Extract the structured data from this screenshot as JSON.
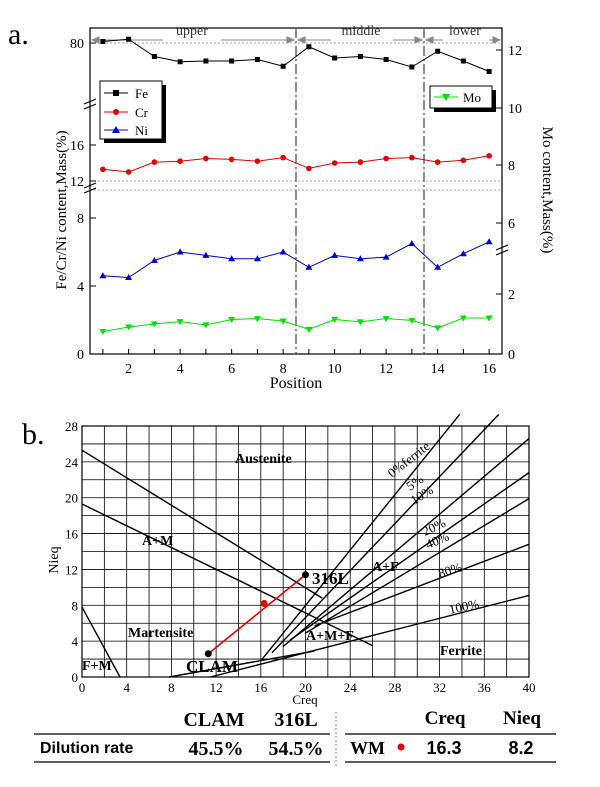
{
  "panel_a": {
    "panel_label": "a.",
    "regions": [
      "upper",
      "middle",
      "lower"
    ],
    "xlabel": "Position",
    "ylabel_left": "Fe/Cr/Ni content,Mass(%)",
    "ylabel_right": "Mo content,Mass(%)",
    "xticks": [
      "2",
      "4",
      "6",
      "8",
      "10",
      "12",
      "14",
      "16"
    ],
    "left_ticks": [
      "80",
      "16",
      "12",
      "8",
      "4",
      "0"
    ],
    "right_ticks": [
      "12",
      "10",
      "8",
      "6",
      "2",
      "0"
    ],
    "legend_left": [
      "Fe",
      "Cr",
      "Ni"
    ],
    "legend_right": [
      "Mo"
    ],
    "colors": {
      "Fe": "#000000",
      "Cr": "#e00000",
      "Ni": "#0000d0",
      "Mo": "#00e000"
    }
  },
  "panel_b": {
    "panel_label": "b.",
    "xlabel": "Creq",
    "ylabel": "Nieq",
    "xticks": [
      "0",
      "4",
      "8",
      "12",
      "16",
      "20",
      "24",
      "28",
      "32",
      "36",
      "40"
    ],
    "yticks": [
      "0",
      "4",
      "8",
      "12",
      "16",
      "20",
      "24",
      "28"
    ],
    "regions": [
      "Austenite",
      "A+M",
      "A+F",
      "Martensite",
      "A+M+F",
      "F+M",
      "Ferrite"
    ],
    "ferrite_lines": [
      "0%ferrite",
      "5%",
      "10%",
      "20%",
      "40%",
      "80%",
      "100%"
    ],
    "points": [
      {
        "name": "316L",
        "creq": 20,
        "nieq": 11.4
      },
      {
        "name": "CLAM",
        "creq": 11.3,
        "nieq": 2.6
      }
    ],
    "wm_point": {
      "creq": 16.3,
      "nieq": 8.2
    }
  },
  "table": {
    "headers": [
      "CLAM",
      "316L",
      "Creq",
      "Nieq"
    ],
    "row_label": "Dilution rate",
    "values": [
      "45.5%",
      "54.5%"
    ],
    "wm_label": "WM",
    "wm_values": [
      "16.3",
      "8.2"
    ]
  },
  "chart_data": [
    {
      "type": "line",
      "title": "",
      "xlabel": "Position",
      "ylabel": "Fe/Cr/Ni content,Mass(%)",
      "ylabel_right": "Mo content,Mass(%)",
      "x": [
        1,
        2,
        3,
        4,
        5,
        6,
        7,
        8,
        9,
        10,
        11,
        12,
        13,
        14,
        15,
        16
      ],
      "xlim": [
        0.5,
        16.5
      ],
      "series": [
        {
          "name": "Fe",
          "axis": "left",
          "values": [
            80.2,
            80.5,
            78.2,
            77.5,
            77.6,
            77.6,
            77.8,
            76.9,
            79.5,
            78.0,
            78.2,
            77.8,
            76.8,
            78.9,
            77.6,
            76.2
          ]
        },
        {
          "name": "Cr",
          "axis": "left",
          "values": [
            13.3,
            13.0,
            14.1,
            14.2,
            14.5,
            14.4,
            14.2,
            14.6,
            13.4,
            14.0,
            14.1,
            14.5,
            14.6,
            14.1,
            14.3,
            14.8
          ]
        },
        {
          "name": "Ni",
          "axis": "left",
          "values": [
            4.6,
            4.5,
            5.5,
            6.0,
            5.8,
            5.6,
            5.6,
            6.0,
            5.1,
            5.8,
            5.6,
            5.7,
            6.5,
            5.1,
            5.9,
            6.6
          ]
        },
        {
          "name": "Mo",
          "axis": "right",
          "values": [
            0.75,
            0.9,
            1.0,
            1.08,
            0.97,
            1.15,
            1.18,
            1.1,
            0.82,
            1.15,
            1.07,
            1.18,
            1.12,
            0.87,
            1.2,
            1.2
          ]
        }
      ],
      "legend": "upper-left (Fe, Cr, Ni); upper-right (Mo)",
      "grid": false
    },
    {
      "type": "scatter",
      "title": "",
      "xlabel": "Creq",
      "ylabel": "Nieq",
      "xlim": [
        0,
        40
      ],
      "ylim": [
        0,
        28
      ],
      "grid": true,
      "series": [
        {
          "name": "316L",
          "x": [
            20
          ],
          "y": [
            11.4
          ]
        },
        {
          "name": "CLAM",
          "x": [
            11.3
          ],
          "y": [
            2.6
          ]
        },
        {
          "name": "WM",
          "x": [
            16.3
          ],
          "y": [
            8.2
          ]
        }
      ]
    }
  ]
}
